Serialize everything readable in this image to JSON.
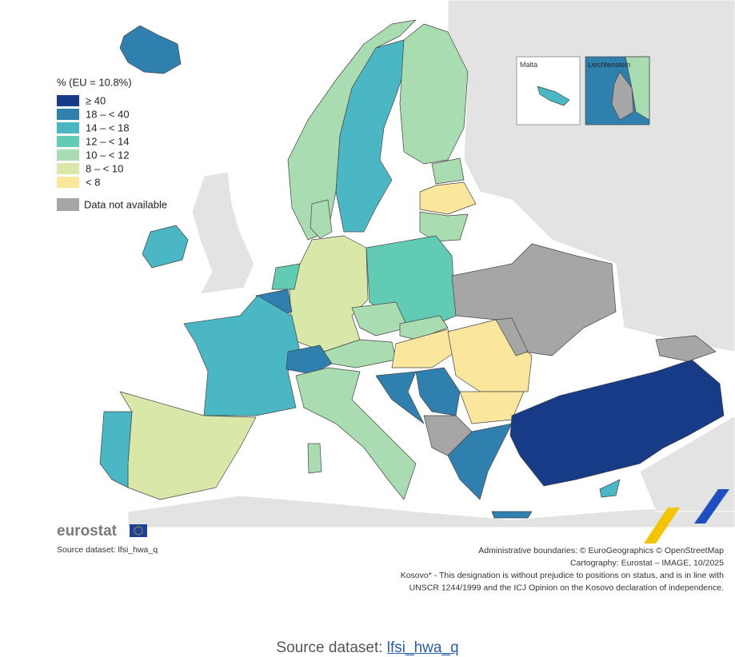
{
  "legend": {
    "title": "% (EU = 10.8%)",
    "items": [
      {
        "label": "≥ 40",
        "color": "#173b86"
      },
      {
        "label": "18 – < 40",
        "color": "#2f80ae"
      },
      {
        "label": "14 – < 18",
        "color": "#4bb7c5"
      },
      {
        "label": "12 – < 14",
        "color": "#62cbb3"
      },
      {
        "label": "10 – < 12",
        "color": "#a9dcb1"
      },
      {
        "label": "8 – < 10",
        "color": "#d9e8a8"
      },
      {
        "label": "< 8",
        "color": "#fbe69d"
      }
    ],
    "not_available": {
      "label": "Data not available",
      "color": "#a6a6a6"
    }
  },
  "insets": [
    {
      "label": "Malta"
    },
    {
      "label": "Liechtenstein"
    }
  ],
  "logo": {
    "text": "eurostat"
  },
  "source_left": "Source dataset: lfsi_hwa_q",
  "credits": [
    "Administrative boundaries: © EuroGeographics © OpenStreetMap",
    "Cartography: Eurostat – IMAGE, 10/2025",
    "Kosovo* - This designation is without prejudice to positions on status, and is in line with",
    "UNSCR 1244/1999 and the ICJ Opinion on the Kosovo declaration of independence."
  ],
  "footer": {
    "prefix": "Source dataset: ",
    "link": "lfsi_hwa_q"
  }
}
